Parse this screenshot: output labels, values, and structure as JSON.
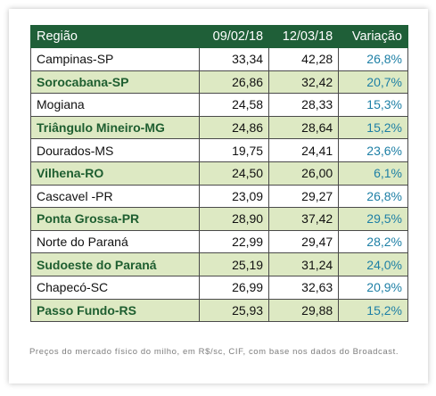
{
  "table": {
    "headers": [
      "Região",
      "09/02/18",
      "12/03/18",
      "Variação"
    ],
    "rows": [
      {
        "region": "Campinas-SP",
        "d1": "33,34",
        "d2": "42,28",
        "var": "26,8%"
      },
      {
        "region": "Sorocabana-SP",
        "d1": "26,86",
        "d2": "32,42",
        "var": "20,7%"
      },
      {
        "region": "Mogiana",
        "d1": "24,58",
        "d2": "28,33",
        "var": "15,3%"
      },
      {
        "region": "Triângulo Mineiro-MG",
        "d1": "24,86",
        "d2": "28,64",
        "var": "15,2%"
      },
      {
        "region": "Dourados-MS",
        "d1": "19,75",
        "d2": "24,41",
        "var": "23,6%"
      },
      {
        "region": "Vilhena-RO",
        "d1": "24,50",
        "d2": "26,00",
        "var": "6,1%"
      },
      {
        "region": "Cascavel -PR",
        "d1": "23,09",
        "d2": "29,27",
        "var": "26,8%"
      },
      {
        "region": "Ponta Grossa-PR",
        "d1": "28,90",
        "d2": "37,42",
        "var": "29,5%"
      },
      {
        "region": "Norte do Paraná",
        "d1": "22,99",
        "d2": "29,47",
        "var": "28,2%"
      },
      {
        "region": "Sudoeste do Paraná",
        "d1": "25,19",
        "d2": "31,24",
        "var": "24,0%"
      },
      {
        "region": "Chapecó-SC",
        "d1": "26,99",
        "d2": "32,63",
        "var": "20,9%"
      },
      {
        "region": "Passo Fundo-RS",
        "d1": "25,93",
        "d2": "29,88",
        "var": "15,2%"
      }
    ]
  },
  "caption": "Preços do mercado físico do milho, em R$/sc, CIF, com base nos dados do Broadcast.",
  "colors": {
    "header_bg": "#1f5f38",
    "alt_row_bg": "#dde9c3",
    "variation_text": "#1d7fa5"
  }
}
